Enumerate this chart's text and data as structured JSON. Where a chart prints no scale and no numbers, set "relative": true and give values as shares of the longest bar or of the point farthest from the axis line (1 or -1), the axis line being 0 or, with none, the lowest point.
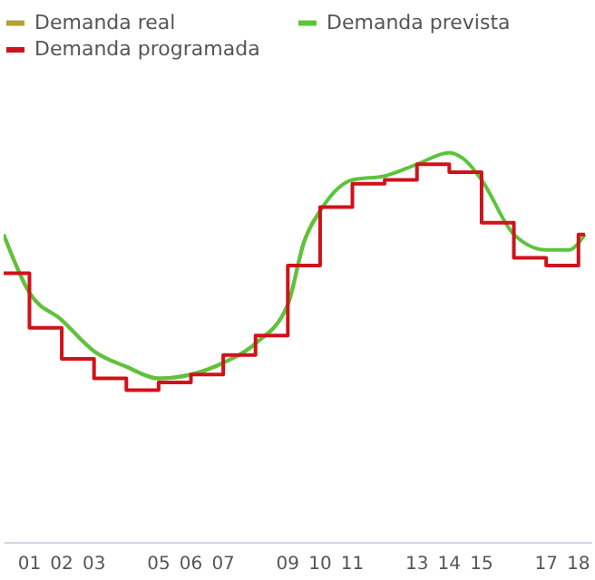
{
  "chart_data": {
    "type": "line",
    "relative": true,
    "legend": "top",
    "xlim": [
      0.2,
      18.4
    ],
    "xticks": [
      {
        "value": 1,
        "label": "01"
      },
      {
        "value": 2,
        "label": "02"
      },
      {
        "value": 3,
        "label": "03"
      },
      {
        "value": 5,
        "label": "05"
      },
      {
        "value": 6,
        "label": "06"
      },
      {
        "value": 7,
        "label": "07"
      },
      {
        "value": 9,
        "label": "09"
      },
      {
        "value": 10,
        "label": "10"
      },
      {
        "value": 11,
        "label": "11"
      },
      {
        "value": 13,
        "label": "13"
      },
      {
        "value": 14,
        "label": "14"
      },
      {
        "value": 15,
        "label": "15"
      },
      {
        "value": 17,
        "label": "17"
      },
      {
        "value": 18,
        "label": "18"
      }
    ],
    "series": [
      {
        "name": "Demanda real",
        "type": "line",
        "color": "#b5a036",
        "x": [
          0.2,
          1,
          2,
          3,
          4,
          5,
          6,
          7,
          8,
          9,
          9.5,
          10
        ],
        "values": [
          0.79,
          0.64,
          0.57,
          0.49,
          0.45,
          0.42,
          0.43,
          0.46,
          0.51,
          0.61,
          0.77,
          0.85
        ]
      },
      {
        "name": "Demanda prevista",
        "type": "line",
        "color": "#5cc43c",
        "x": [
          0.2,
          1,
          2,
          3,
          4,
          5,
          6,
          7,
          8,
          9,
          9.5,
          10,
          11,
          12,
          13,
          14,
          14.5,
          15,
          16,
          17,
          17.7,
          18.2
        ],
        "values": [
          0.79,
          0.64,
          0.57,
          0.49,
          0.45,
          0.42,
          0.43,
          0.46,
          0.51,
          0.61,
          0.77,
          0.85,
          0.93,
          0.94,
          0.97,
          1.0,
          0.98,
          0.93,
          0.79,
          0.75,
          0.75,
          0.79
        ]
      },
      {
        "name": "Demanda programada",
        "type": "step",
        "color": "#d0121b",
        "x": [
          0.2,
          1,
          2,
          3,
          4,
          5,
          6,
          7,
          8,
          9,
          10,
          11,
          12,
          13,
          14,
          15,
          16,
          17,
          18,
          18.2
        ],
        "values": [
          0.69,
          0.55,
          0.47,
          0.42,
          0.39,
          0.41,
          0.43,
          0.48,
          0.53,
          0.71,
          0.86,
          0.92,
          0.93,
          0.97,
          0.95,
          0.82,
          0.73,
          0.71,
          0.79,
          0.79
        ]
      }
    ]
  }
}
